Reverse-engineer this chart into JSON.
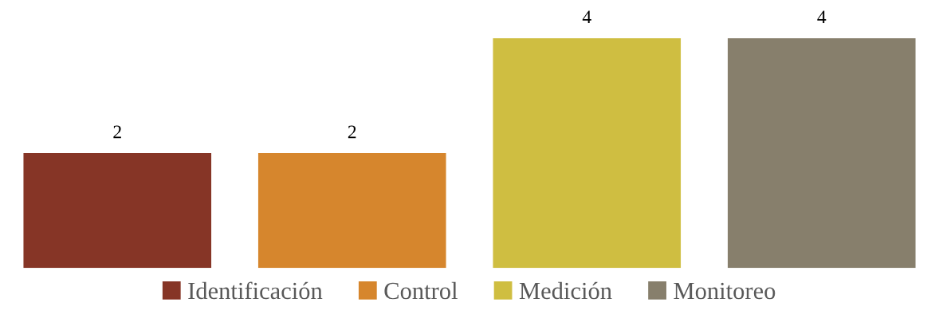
{
  "chart_data": {
    "type": "bar",
    "categories": [
      null
    ],
    "data_labels": true,
    "legend": "bottom",
    "grid": false,
    "series": [
      {
        "name": "Identificación",
        "color": "#863526",
        "values": [
          2
        ]
      },
      {
        "name": "Control",
        "color": "#d6862d",
        "values": [
          2
        ]
      },
      {
        "name": "Medición",
        "color": "#cfbe41",
        "values": [
          4
        ]
      },
      {
        "name": "Monitoreo",
        "color": "#877f6c",
        "values": [
          4
        ]
      }
    ]
  }
}
